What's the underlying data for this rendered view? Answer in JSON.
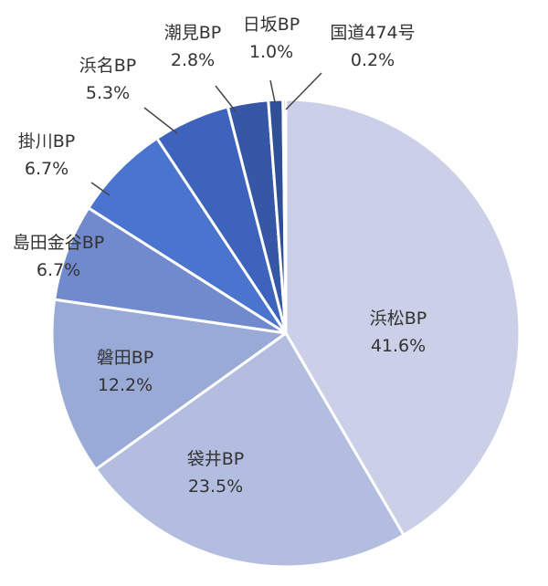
{
  "chart_data": {
    "type": "pie",
    "title": "",
    "slices": [
      {
        "label": "浜松BP",
        "value": 41.6,
        "value_label": "41.6%",
        "color": "#cbd0e8"
      },
      {
        "label": "袋井BP",
        "value": 23.5,
        "value_label": "23.5%",
        "color": "#b3bddf"
      },
      {
        "label": "磐田BP",
        "value": 12.2,
        "value_label": "12.2%",
        "color": "#9aaad6"
      },
      {
        "label": "島田金谷BP",
        "value": 6.7,
        "value_label": "6.7%",
        "color": "#7189cd"
      },
      {
        "label": "掛川BP",
        "value": 6.7,
        "value_label": "6.7%",
        "color": "#4a74ce"
      },
      {
        "label": "浜名BP",
        "value": 5.3,
        "value_label": "5.3%",
        "color": "#3d63bd"
      },
      {
        "label": "潮見BP",
        "value": 2.8,
        "value_label": "2.8%",
        "color": "#3557a6"
      },
      {
        "label": "日坂BP",
        "value": 1.0,
        "value_label": "1.0%",
        "color": "#2f4f96"
      },
      {
        "label": "国道474号",
        "value": 0.2,
        "value_label": "0.2%",
        "color": "#2a4a8c"
      }
    ]
  }
}
